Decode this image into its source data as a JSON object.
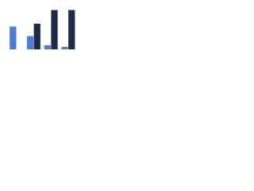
{
  "chart_data": {
    "type": "bar",
    "categories": [
      null,
      null,
      null,
      null
    ],
    "series": [
      {
        "color": "#4a7cdc",
        "values": [
          55,
          32,
          10,
          6
        ]
      },
      {
        "color": "#1c2b47",
        "values": [
          null,
          62,
          95,
          95
        ]
      }
    ],
    "ylim": [
      0,
      100
    ]
  }
}
